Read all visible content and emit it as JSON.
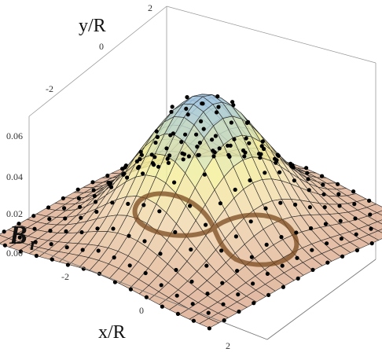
{
  "chart_data": {
    "type": "surface3d",
    "xlabel": "x/R",
    "ylabel": "y/R",
    "zlabel_main": "B",
    "zlabel_sub": "r",
    "x_ticks": [
      "-2",
      "0",
      "2"
    ],
    "y_ticks": [
      "-2",
      "0",
      "2"
    ],
    "z_ticks": [
      "0.00",
      "0.02",
      "0.04",
      "0.06"
    ],
    "xlim": [
      -2.8,
      2.8
    ],
    "ylim": [
      -2.8,
      2.8
    ],
    "zlim": [
      0.0,
      0.07
    ],
    "surface": {
      "description_fn": "peak near origin, max ~0.066",
      "peak": 0.066,
      "colors": [
        "#e8b4a0",
        "#f3e6a8",
        "#bcd7c8",
        "#9ec3e0"
      ]
    },
    "markers": {
      "style": "points",
      "color": "#000000"
    },
    "overlay_curve": {
      "type": "figure-eight",
      "color": "#7a4a1f"
    }
  }
}
